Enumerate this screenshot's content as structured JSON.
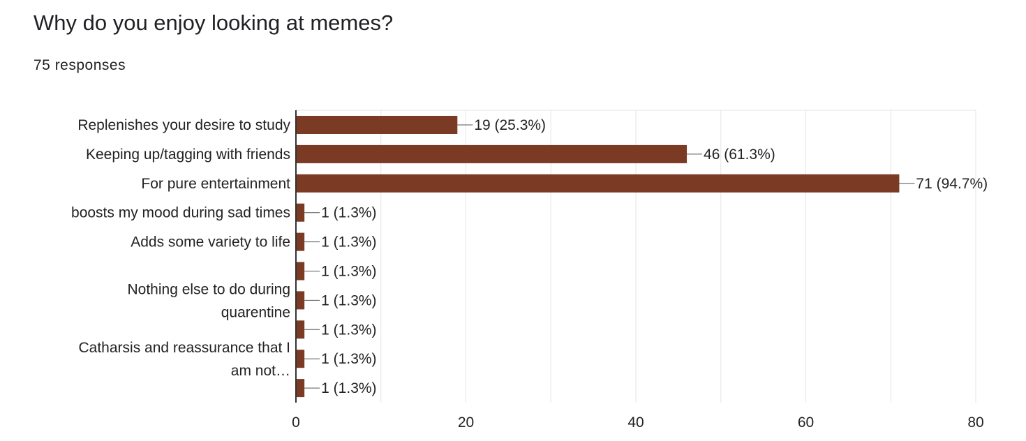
{
  "question": {
    "title": "Why do you enjoy looking at memes?",
    "response_count": "75 responses"
  },
  "chart_data": {
    "type": "bar",
    "orientation": "horizontal",
    "title": "Why do you enjoy looking at memes?",
    "subtitle": "75 responses",
    "xlim": [
      0,
      80
    ],
    "xticks": [
      0,
      20,
      40,
      60,
      80
    ],
    "grid": true,
    "categories": [
      {
        "label_lines": [
          "Replenishes your desire to study"
        ],
        "value": 19,
        "data_label": "19 (25.3%)"
      },
      {
        "label_lines": [
          "Keeping up/tagging with friends"
        ],
        "value": 46,
        "data_label": "46 (61.3%)"
      },
      {
        "label_lines": [
          "For pure entertainment"
        ],
        "value": 71,
        "data_label": "71 (94.7%)"
      },
      {
        "label_lines": [
          "boosts my mood during sad times"
        ],
        "value": 1,
        "data_label": "1 (1.3%)"
      },
      {
        "label_lines": [
          "Adds some variety to life"
        ],
        "value": 1,
        "data_label": "1 (1.3%)"
      },
      {
        "label_lines": [],
        "value": 1,
        "data_label": "1 (1.3%)"
      },
      {
        "label_lines": [
          "Nothing else to do during",
          "quarentine"
        ],
        "value": 1,
        "data_label": "1 (1.3%)"
      },
      {
        "label_lines": [],
        "value": 1,
        "data_label": "1 (1.3%)"
      },
      {
        "label_lines": [
          "Catharsis and reassurance that I",
          "am not…"
        ],
        "value": 1,
        "data_label": "1 (1.3%)"
      },
      {
        "label_lines": [],
        "value": 1,
        "data_label": "1 (1.3%)"
      }
    ],
    "colors": {
      "bar": "#7b3a24",
      "grid": "#e6e6e6",
      "axis": "#333333",
      "text": "#222222"
    }
  }
}
